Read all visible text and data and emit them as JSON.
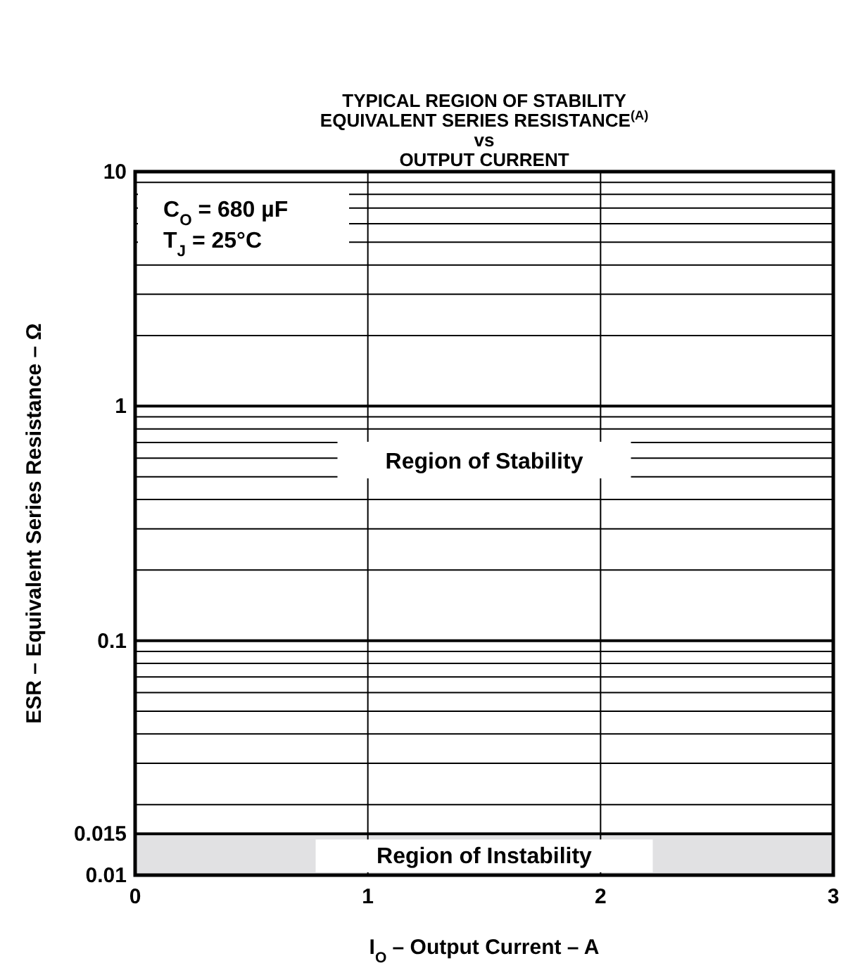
{
  "chart_data": {
    "type": "line",
    "title": "TYPICAL REGION OF STABILITY\nEQUIVALENT SERIES RESISTANCE$^{(A)}$\nvs\nOUTPUT CURRENT",
    "xlabel": "I$_{O}$ – Output Current – A",
    "ylabel": "ESR – Equivalent Series Resistance – Ω",
    "xlim": [
      0,
      3
    ],
    "xticks": [
      0,
      1,
      2,
      3
    ],
    "ylim": [
      0.01,
      10
    ],
    "yticks": [
      0.01,
      0.015,
      0.1,
      1,
      10
    ],
    "log": "y",
    "grid": true,
    "bands": [
      {
        "axis": "y",
        "from": 0.01,
        "to": 0.015,
        "label": "Region of Instability",
        "color": "#e1e1e3"
      }
    ],
    "annotations": [
      "C$_{O}$ = 680 µF",
      "T$_{J}$ = 25°C",
      "Region of Stability"
    ]
  }
}
